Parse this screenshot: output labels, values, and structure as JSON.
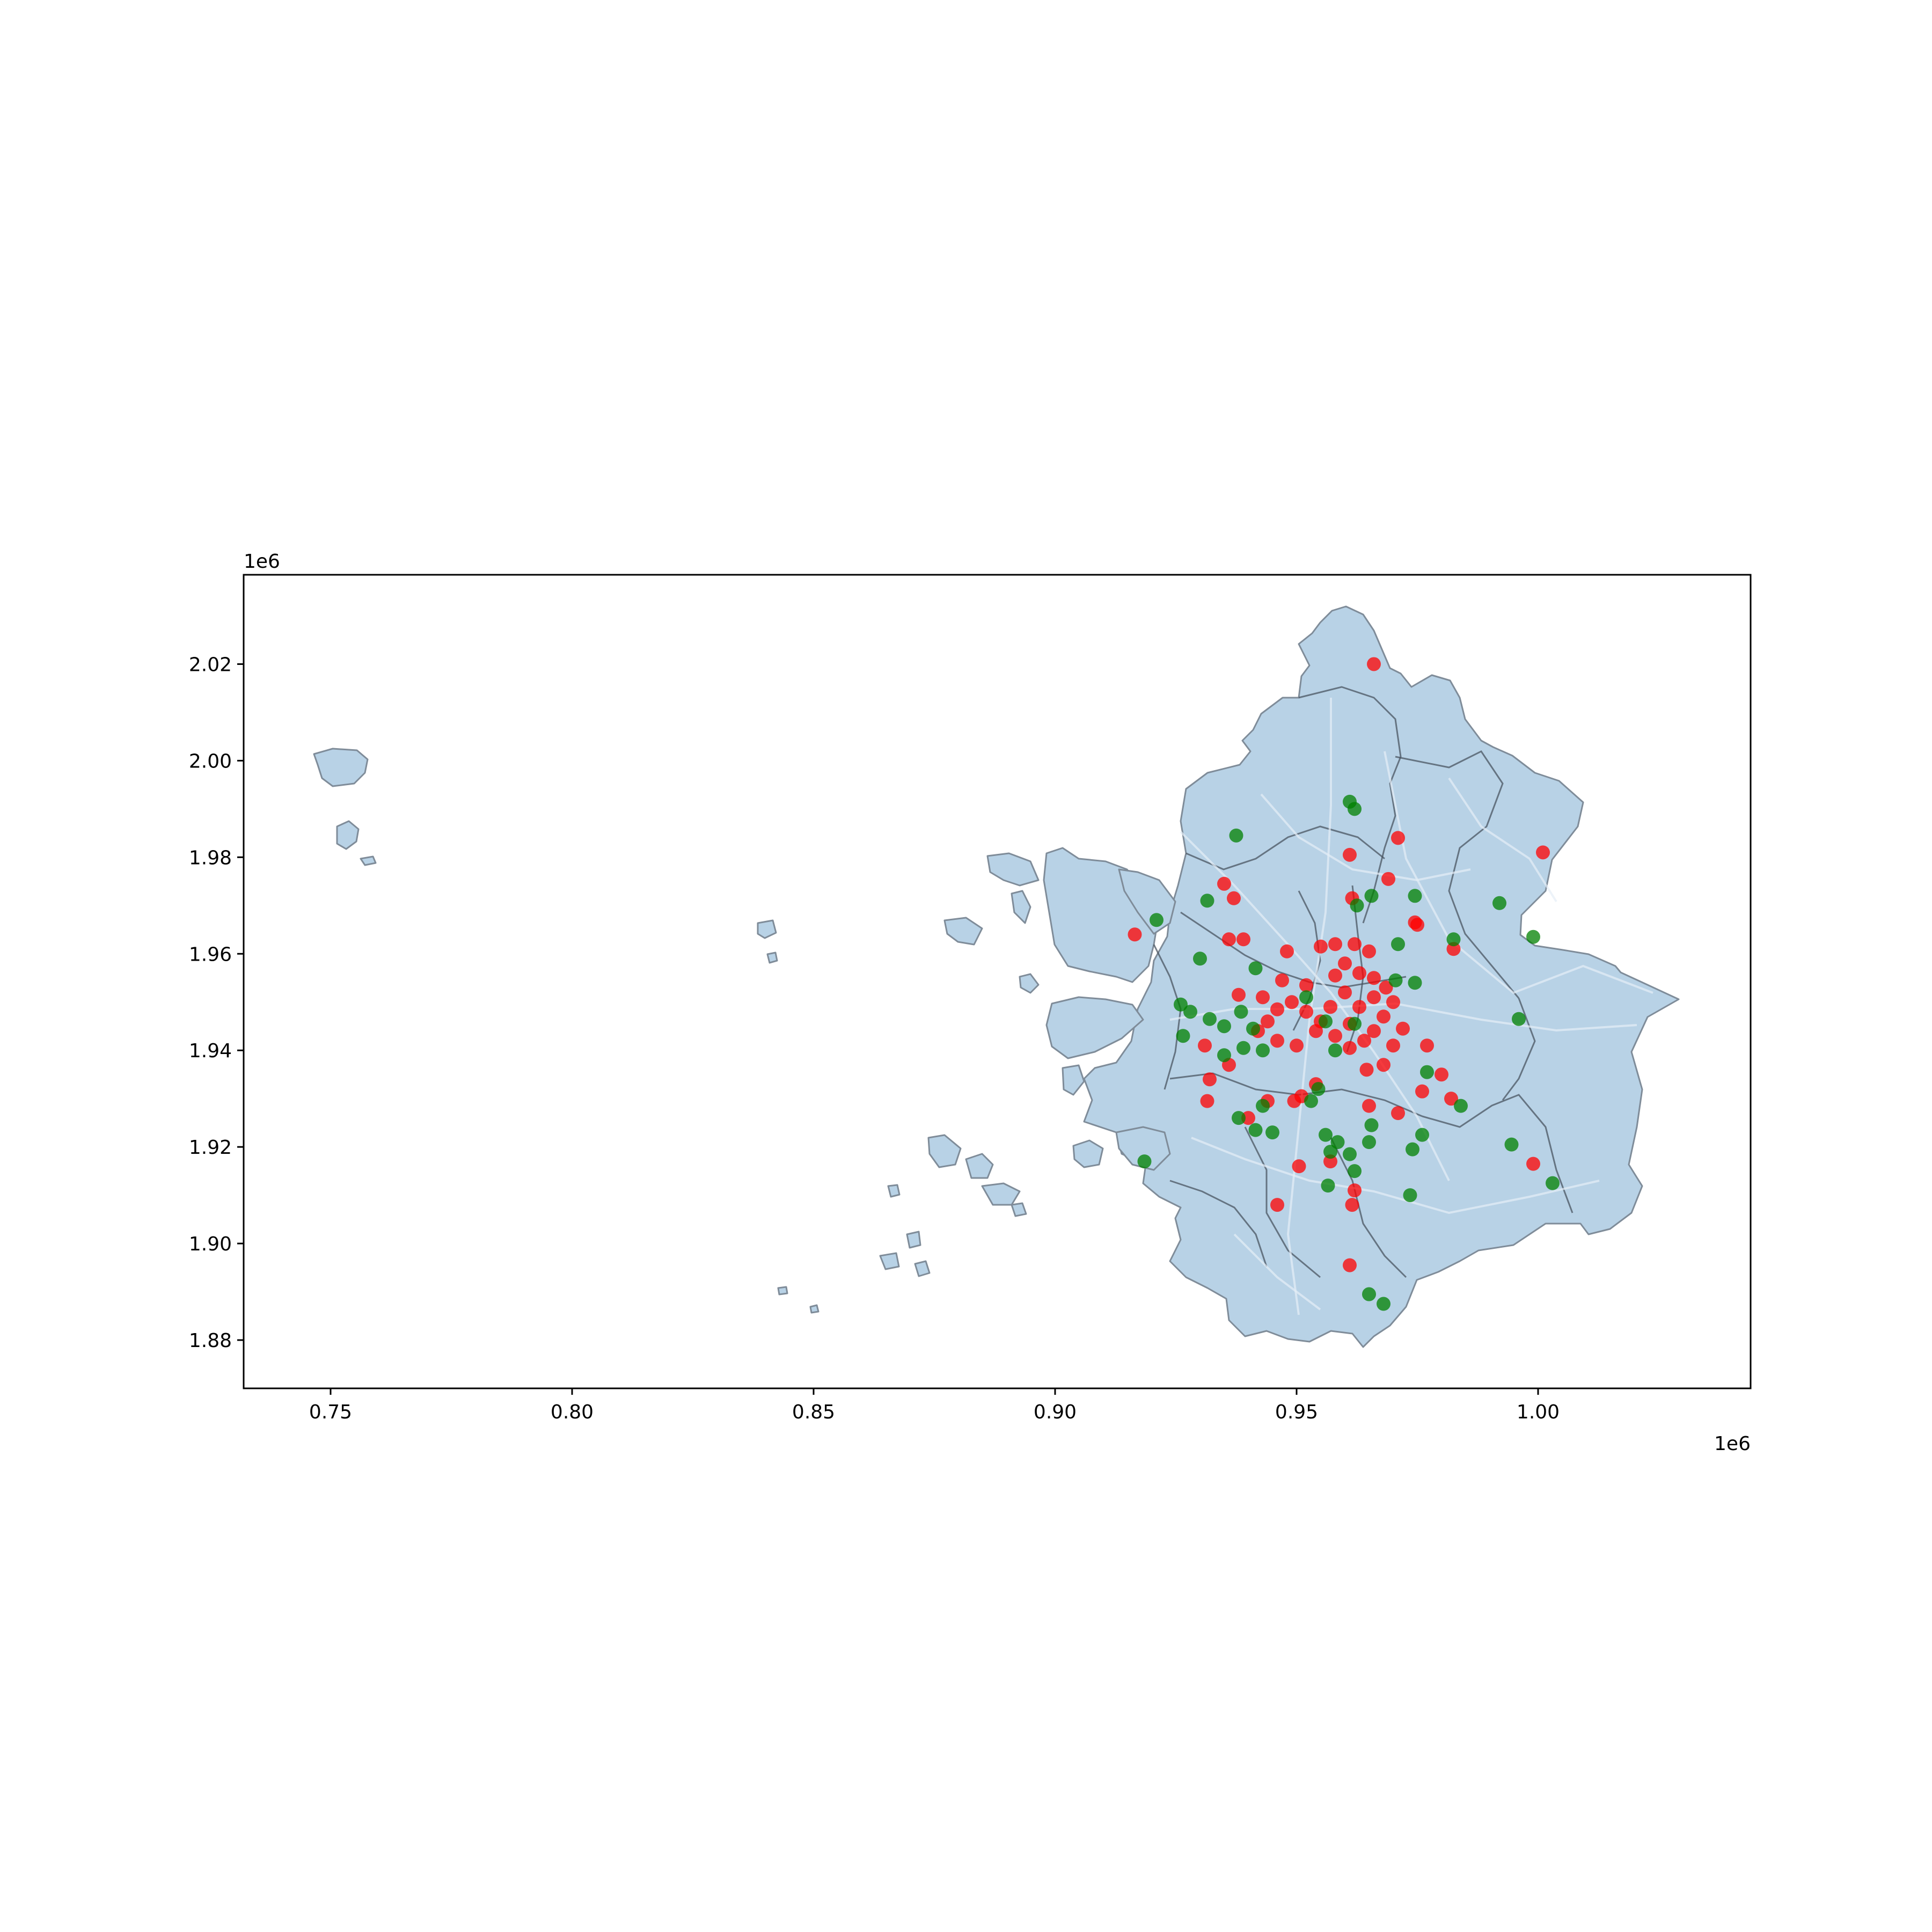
{
  "chart_data": {
    "type": "scatter",
    "title": "",
    "xlabel": "",
    "ylabel": "",
    "xlim": [
      732000,
      1044000
    ],
    "ylim": [
      1870000,
      2038500
    ],
    "x_offset_label": "1e6",
    "y_offset_label": "1e6",
    "xticks": [
      {
        "value": 750000,
        "label": "0.75"
      },
      {
        "value": 800000,
        "label": "0.80"
      },
      {
        "value": 850000,
        "label": "0.85"
      },
      {
        "value": 900000,
        "label": "0.90"
      },
      {
        "value": 950000,
        "label": "0.95"
      },
      {
        "value": 1000000,
        "label": "1.00"
      }
    ],
    "yticks": [
      {
        "value": 1880000,
        "label": "1.88"
      },
      {
        "value": 1900000,
        "label": "1.90"
      },
      {
        "value": 1920000,
        "label": "1.92"
      },
      {
        "value": 1940000,
        "label": "1.94"
      },
      {
        "value": 1960000,
        "label": "1.96"
      },
      {
        "value": 1980000,
        "label": "1.98"
      },
      {
        "value": 2000000,
        "label": "2.00"
      },
      {
        "value": 2020000,
        "label": "2.02"
      }
    ],
    "grid": false,
    "legend": false,
    "colors": {
      "region_fill": "#b8d2e6",
      "region_edge": "#7f8c99",
      "district_line": "#4a5460",
      "road": "#e6eef6",
      "series_red": "#ff0000",
      "series_green": "#008000"
    },
    "series": [
      {
        "color": "#ff0000",
        "points": [
          [
            966000,
            2020000
          ],
          [
            916500,
            1964000
          ],
          [
            961000,
            1980500
          ],
          [
            971000,
            1984000
          ],
          [
            969000,
            1975500
          ],
          [
            935000,
            1974500
          ],
          [
            937000,
            1971500
          ],
          [
            1001000,
            1981000
          ],
          [
            975000,
            1966000
          ],
          [
            982500,
            1961000
          ],
          [
            936000,
            1963000
          ],
          [
            939000,
            1963000
          ],
          [
            961500,
            1971500
          ],
          [
            948000,
            1960500
          ],
          [
            955000,
            1961500
          ],
          [
            958000,
            1962000
          ],
          [
            962000,
            1962000
          ],
          [
            965000,
            1960500
          ],
          [
            960000,
            1958000
          ],
          [
            963000,
            1956000
          ],
          [
            966000,
            1955000
          ],
          [
            968500,
            1953000
          ],
          [
            970000,
            1950000
          ],
          [
            968000,
            1947000
          ],
          [
            966000,
            1944000
          ],
          [
            964000,
            1942000
          ],
          [
            961000,
            1940500
          ],
          [
            958000,
            1943000
          ],
          [
            955000,
            1946000
          ],
          [
            952000,
            1948000
          ],
          [
            949000,
            1950000
          ],
          [
            946000,
            1948500
          ],
          [
            944000,
            1946000
          ],
          [
            942000,
            1944000
          ],
          [
            946000,
            1942000
          ],
          [
            950000,
            1941000
          ],
          [
            954000,
            1944000
          ],
          [
            957000,
            1949000
          ],
          [
            960000,
            1952000
          ],
          [
            963000,
            1949000
          ],
          [
            966000,
            1951000
          ],
          [
            958000,
            1955500
          ],
          [
            952000,
            1953500
          ],
          [
            947000,
            1954500
          ],
          [
            943000,
            1951000
          ],
          [
            961000,
            1945500
          ],
          [
            964500,
            1936000
          ],
          [
            968000,
            1937000
          ],
          [
            970000,
            1941000
          ],
          [
            938000,
            1951500
          ],
          [
            936000,
            1937000
          ],
          [
            931000,
            1941000
          ],
          [
            932000,
            1934000
          ],
          [
            931500,
            1929500
          ],
          [
            940000,
            1926000
          ],
          [
            944000,
            1929500
          ],
          [
            949500,
            1929500
          ],
          [
            951000,
            1930500
          ],
          [
            954000,
            1933000
          ],
          [
            965000,
            1928500
          ],
          [
            971000,
            1927000
          ],
          [
            977000,
            1941000
          ],
          [
            980000,
            1935000
          ],
          [
            976000,
            1931500
          ],
          [
            982000,
            1930000
          ],
          [
            950500,
            1916000
          ],
          [
            957000,
            1917000
          ],
          [
            946000,
            1908000
          ],
          [
            961500,
            1908000
          ],
          [
            962000,
            1911000
          ],
          [
            961000,
            1895500
          ],
          [
            999000,
            1916500
          ],
          [
            972000,
            1944500
          ],
          [
            974500,
            1966500
          ]
        ]
      },
      {
        "color": "#008000",
        "points": [
          [
            961000,
            1991500
          ],
          [
            962000,
            1990000
          ],
          [
            937500,
            1984500
          ],
          [
            931500,
            1971000
          ],
          [
            921000,
            1967000
          ],
          [
            965500,
            1972000
          ],
          [
            962500,
            1970000
          ],
          [
            974500,
            1972000
          ],
          [
            992000,
            1970500
          ],
          [
            999000,
            1963500
          ],
          [
            982500,
            1963000
          ],
          [
            971000,
            1962000
          ],
          [
            930000,
            1959000
          ],
          [
            941500,
            1957000
          ],
          [
            970500,
            1954500
          ],
          [
            974500,
            1954000
          ],
          [
            996000,
            1946500
          ],
          [
            928000,
            1948000
          ],
          [
            932000,
            1946500
          ],
          [
            935000,
            1945000
          ],
          [
            938500,
            1948000
          ],
          [
            941000,
            1944500
          ],
          [
            943000,
            1940000
          ],
          [
            939000,
            1940500
          ],
          [
            935000,
            1939000
          ],
          [
            926500,
            1943000
          ],
          [
            926000,
            1949500
          ],
          [
            958000,
            1940000
          ],
          [
            956000,
            1946000
          ],
          [
            952000,
            1951000
          ],
          [
            962000,
            1945500
          ],
          [
            943000,
            1928500
          ],
          [
            938000,
            1926000
          ],
          [
            941500,
            1923500
          ],
          [
            945000,
            1923000
          ],
          [
            954500,
            1932000
          ],
          [
            953000,
            1929500
          ],
          [
            956000,
            1922500
          ],
          [
            958500,
            1921000
          ],
          [
            957000,
            1919000
          ],
          [
            961000,
            1918500
          ],
          [
            965000,
            1921000
          ],
          [
            965500,
            1924500
          ],
          [
            976000,
            1922500
          ],
          [
            984000,
            1928500
          ],
          [
            977000,
            1935500
          ],
          [
            973500,
            1910000
          ],
          [
            974000,
            1919500
          ],
          [
            994500,
            1920500
          ],
          [
            1003000,
            1912500
          ],
          [
            918500,
            1917000
          ],
          [
            956500,
            1912000
          ],
          [
            965000,
            1889500
          ],
          [
            968000,
            1887500
          ],
          [
            962000,
            1915000
          ]
        ]
      }
    ]
  }
}
